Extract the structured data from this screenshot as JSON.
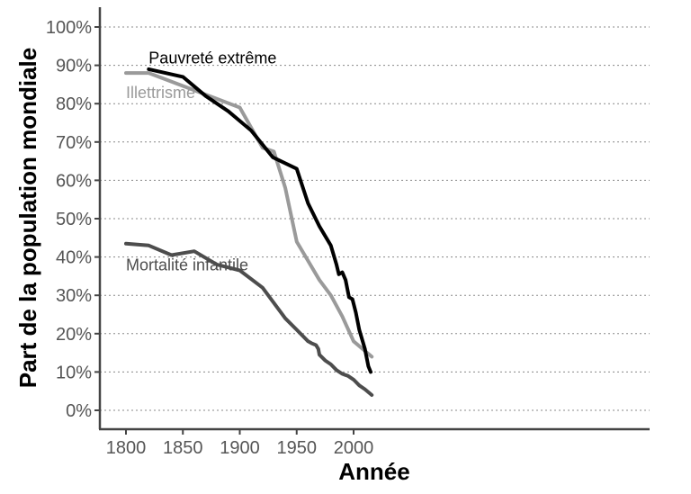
{
  "chart_data": {
    "type": "line",
    "xlabel": "Année",
    "ylabel": "Part de la population mondiale",
    "xlim": [
      1790,
      2030
    ],
    "ylim": [
      -5,
      105
    ],
    "x_ticks": [
      1800,
      1850,
      1900,
      1950,
      2000
    ],
    "y_ticks": [
      0,
      10,
      20,
      30,
      40,
      50,
      60,
      70,
      80,
      90,
      100
    ],
    "y_tick_labels": [
      "0%",
      "10%",
      "20%",
      "30%",
      "40%",
      "50%",
      "60%",
      "70%",
      "80%",
      "90%",
      "100%"
    ],
    "grid": "horizontal dotted",
    "series": [
      {
        "name": "Pauvreté extrême",
        "color": "#000000",
        "x": [
          1820,
          1850,
          1870,
          1890,
          1910,
          1929,
          1950,
          1960,
          1970,
          1980,
          1985,
          1987,
          1990,
          1993,
          1996,
          1999,
          2002,
          2005,
          2008,
          2010,
          2013,
          2015
        ],
        "y": [
          89,
          87,
          82,
          78,
          73,
          66,
          63,
          54,
          48,
          43,
          38,
          35.5,
          36,
          34,
          29.5,
          29,
          25.5,
          21,
          18,
          16,
          11.5,
          10
        ]
      },
      {
        "name": "Illettrisme",
        "color": "#9a9a9a",
        "x": [
          1800,
          1820,
          1900,
          1920,
          1930,
          1940,
          1950,
          1960,
          1970,
          1980,
          1990,
          2000,
          2010,
          2016
        ],
        "y": [
          88,
          88,
          79,
          68.5,
          67.5,
          58,
          44,
          39,
          34,
          30,
          24.5,
          18,
          15.5,
          14
        ]
      },
      {
        "name": "Mortalité infantile",
        "color": "#4d4d4d",
        "x": [
          1800,
          1820,
          1840,
          1860,
          1880,
          1900,
          1920,
          1940,
          1950,
          1960,
          1963,
          1967,
          1969,
          1970,
          1975,
          1980,
          1985,
          1990,
          1995,
          2000,
          2005,
          2010,
          2016
        ],
        "y": [
          43.5,
          43,
          40.5,
          41.5,
          38,
          36.5,
          32,
          24,
          21,
          18,
          17.5,
          17,
          16,
          14.5,
          13,
          12,
          10.5,
          9.5,
          9,
          8,
          6.5,
          5.5,
          4
        ]
      }
    ]
  }
}
